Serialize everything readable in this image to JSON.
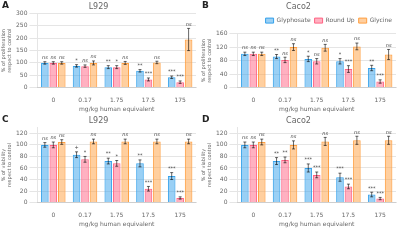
{
  "chart_data": [
    {
      "type": "bar",
      "panel": "A",
      "title": "L929",
      "xlabel": "mg/kg human equivalent",
      "ylabel": "% of proliferation respect to control",
      "categories": [
        "0",
        "0.17",
        "1.75",
        "17.5",
        "175"
      ],
      "series": [
        {
          "name": "Glyphosate",
          "values": [
            100,
            88,
            83,
            68,
            42
          ],
          "errors": [
            5,
            5,
            6,
            5,
            5
          ],
          "annotations": [
            "ns",
            "*",
            "**",
            "**",
            "***"
          ]
        },
        {
          "name": "Round Up",
          "values": [
            100,
            87,
            83,
            33,
            22
          ],
          "errors": [
            5,
            5,
            6,
            6,
            5
          ],
          "annotations": [
            "ns",
            "ns",
            "*",
            "***",
            "***"
          ]
        },
        {
          "name": "Glycine",
          "values": [
            100,
            100,
            100,
            102,
            195
          ],
          "errors": [
            5,
            8,
            6,
            5,
            45
          ],
          "annotations": [
            "ns",
            "ns",
            "ns",
            "ns",
            "ns"
          ]
        }
      ],
      "ylim": [
        0,
        300
      ],
      "yticks": [
        0,
        50,
        100,
        150,
        200,
        250,
        300
      ],
      "grid": true
    },
    {
      "type": "bar",
      "panel": "B",
      "title": "Caco2",
      "xlabel": "mg/kg human equivalent",
      "ylabel": "% of proliferation respect to control",
      "categories": [
        "0",
        "0.17",
        "1.75",
        "17.5",
        "175"
      ],
      "series": [
        {
          "name": "Glyphosate",
          "values": [
            100,
            92,
            85,
            78,
            58
          ],
          "errors": [
            5,
            6,
            8,
            8,
            8
          ],
          "annotations": [
            "ns",
            "**",
            "*",
            "*",
            "**"
          ]
        },
        {
          "name": "Round Up",
          "values": [
            100,
            82,
            78,
            55,
            18
          ],
          "errors": [
            5,
            8,
            8,
            10,
            5
          ],
          "annotations": [
            "ns",
            "ns",
            "ns",
            "***",
            "***"
          ]
        },
        {
          "name": "Glycine",
          "values": [
            100,
            120,
            118,
            122,
            98
          ],
          "errors": [
            5,
            10,
            10,
            10,
            15
          ],
          "annotations": [
            "ns",
            "ns",
            "ns",
            "ns",
            "ns"
          ]
        }
      ],
      "ylim": [
        0,
        160
      ],
      "yticks": [
        0,
        40,
        80,
        120,
        160
      ],
      "grid": true,
      "legend": "upper right"
    },
    {
      "type": "bar",
      "panel": "C",
      "title": "L929",
      "xlabel": "mg/kg human equivalent",
      "ylabel": "% of viability respect to control",
      "categories": [
        "0",
        "0.17",
        "1.75",
        "17.5",
        "175"
      ],
      "series": [
        {
          "name": "Glyphosate",
          "values": [
            100,
            83,
            72,
            68,
            46
          ],
          "errors": [
            4,
            5,
            5,
            6,
            6
          ],
          "annotations": [
            "ns",
            "+",
            "**",
            "**",
            "***"
          ]
        },
        {
          "name": "Round Up",
          "values": [
            100,
            75,
            68,
            24,
            8
          ],
          "errors": [
            5,
            5,
            5,
            4,
            2
          ],
          "annotations": [
            "ns",
            "*",
            "*",
            "***",
            "***"
          ]
        },
        {
          "name": "Glycine",
          "values": [
            105,
            106,
            106,
            106,
            106
          ],
          "errors": [
            4,
            4,
            4,
            4,
            4
          ],
          "annotations": [
            "ns",
            "ns",
            "ns",
            "ns",
            "ns"
          ]
        }
      ],
      "ylim": [
        0,
        130
      ],
      "yticks": [
        0,
        20,
        40,
        60,
        80,
        100,
        120
      ],
      "grid": true
    },
    {
      "type": "bar",
      "panel": "D",
      "title": "Caco2",
      "xlabel": "mg/kg human equivalent",
      "ylabel": "% of viability respect to control",
      "categories": [
        "0",
        "0.17",
        "1.75",
        "17.5",
        "175"
      ],
      "series": [
        {
          "name": "Glyphosate",
          "values": [
            100,
            72,
            60,
            44,
            14
          ],
          "errors": [
            5,
            6,
            7,
            7,
            4
          ],
          "annotations": [
            "ns",
            "**",
            "***",
            "***",
            "***"
          ]
        },
        {
          "name": "Round Up",
          "values": [
            100,
            74,
            48,
            28,
            7
          ],
          "errors": [
            5,
            5,
            5,
            4,
            2
          ],
          "annotations": [
            "ns",
            "**",
            "***",
            "***",
            "***"
          ]
        },
        {
          "name": "Glycine",
          "values": [
            105,
            100,
            106,
            108,
            108
          ],
          "errors": [
            5,
            7,
            7,
            7,
            7
          ],
          "annotations": [
            "ns",
            "ns",
            "ns",
            "ns",
            "ns"
          ]
        }
      ],
      "ylim": [
        0,
        130
      ],
      "yticks": [
        0,
        20,
        40,
        60,
        80,
        100,
        120
      ],
      "grid": true
    }
  ]
}
